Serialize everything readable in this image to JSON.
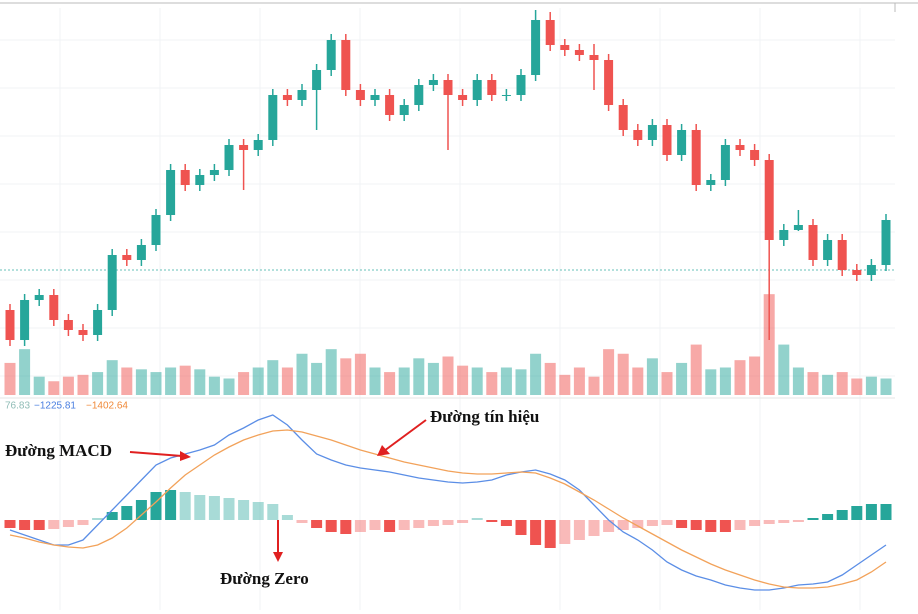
{
  "chart_data": [
    {
      "type": "candlestick",
      "ylim": [
        0,
        340
      ],
      "up_color": "#26a69a",
      "down_color": "#ef5350",
      "price_line": 80,
      "open": [
        40,
        10,
        50,
        55,
        30,
        20,
        15,
        40,
        95,
        90,
        105,
        135,
        180,
        165,
        175,
        180,
        205,
        200,
        210,
        255,
        250,
        260,
        280,
        310,
        260,
        250,
        255,
        235,
        245,
        265,
        270,
        255,
        250,
        270,
        255,
        255,
        275,
        330,
        305,
        300,
        295,
        290,
        245,
        220,
        210,
        225,
        195,
        220,
        165,
        170,
        205,
        200,
        190,
        110,
        120,
        125,
        90,
        110,
        80,
        75,
        85
      ],
      "close": [
        10,
        50,
        55,
        30,
        20,
        15,
        40,
        95,
        90,
        105,
        135,
        180,
        165,
        175,
        180,
        205,
        200,
        210,
        255,
        250,
        260,
        280,
        310,
        260,
        250,
        255,
        235,
        245,
        265,
        270,
        255,
        250,
        270,
        255,
        255,
        275,
        330,
        305,
        300,
        295,
        290,
        245,
        220,
        210,
        225,
        195,
        220,
        165,
        170,
        205,
        200,
        190,
        110,
        120,
        125,
        90,
        110,
        80,
        75,
        85,
        130
      ],
      "high": [
        46,
        56,
        61,
        61,
        36,
        26,
        46,
        101,
        101,
        111,
        141,
        186,
        186,
        181,
        186,
        211,
        211,
        216,
        261,
        261,
        266,
        286,
        316,
        316,
        266,
        261,
        261,
        251,
        271,
        276,
        276,
        261,
        276,
        276,
        261,
        281,
        340,
        338,
        311,
        306,
        306,
        296,
        251,
        226,
        231,
        231,
        226,
        226,
        176,
        211,
        211,
        206,
        196,
        126,
        140,
        131,
        116,
        116,
        86,
        91,
        136
      ],
      "low": [
        4,
        4,
        44,
        24,
        14,
        9,
        9,
        34,
        84,
        84,
        99,
        129,
        159,
        159,
        169,
        174,
        160,
        194,
        204,
        244,
        244,
        220,
        274,
        254,
        244,
        244,
        229,
        229,
        239,
        259,
        200,
        244,
        244,
        249,
        249,
        249,
        269,
        299,
        294,
        289,
        260,
        239,
        214,
        204,
        204,
        189,
        189,
        159,
        159,
        164,
        194,
        184,
        10,
        104,
        119,
        84,
        84,
        74,
        69,
        69,
        79
      ]
    },
    {
      "type": "bar",
      "ylim": [
        0,
        120
      ],
      "values": [
        35,
        50,
        20,
        15,
        20,
        22,
        25,
        38,
        30,
        28,
        25,
        30,
        32,
        28,
        20,
        18,
        25,
        30,
        38,
        30,
        45,
        35,
        50,
        40,
        45,
        30,
        25,
        30,
        40,
        35,
        42,
        32,
        30,
        25,
        30,
        28,
        45,
        35,
        22,
        30,
        20,
        50,
        45,
        30,
        40,
        25,
        35,
        55,
        28,
        30,
        38,
        42,
        110,
        55,
        30,
        25,
        22,
        25,
        18,
        20,
        18
      ]
    },
    {
      "type": "macd",
      "ylim": [
        -80,
        110
      ],
      "header": [
        {
          "text": "76.83",
          "color": "#8fbcb6"
        },
        {
          "text": "−1225.81",
          "color": "#4a7fe0"
        },
        {
          "text": "−1402.64",
          "color": "#f08a3a"
        }
      ],
      "series": [
        {
          "color": "#5b8ee6",
          "values": [
            -10,
            -15,
            -20,
            -25,
            -25,
            -20,
            -5,
            10,
            25,
            40,
            55,
            62,
            66,
            70,
            75,
            85,
            92,
            100,
            105,
            95,
            80,
            66,
            60,
            55,
            52,
            50,
            48,
            45,
            42,
            40,
            38,
            37,
            38,
            40,
            45,
            48,
            50,
            46,
            40,
            30,
            15,
            0,
            -12,
            -20,
            -30,
            -42,
            -50,
            -56,
            -60,
            -65,
            -68,
            -70,
            -70,
            -68,
            -65,
            -64,
            -62,
            -55,
            -45,
            -35,
            -25
          ]
        },
        {
          "color": "#f2a25a",
          "values": [
            -15,
            -18,
            -22,
            -25,
            -27,
            -28,
            -25,
            -18,
            -8,
            5,
            18,
            32,
            45,
            55,
            65,
            73,
            80,
            85,
            89,
            90,
            88,
            84,
            80,
            75,
            70,
            66,
            62,
            58,
            55,
            52,
            49,
            47,
            46,
            46,
            47,
            48,
            47,
            42,
            36,
            28,
            20,
            11,
            2,
            -6,
            -14,
            -22,
            -30,
            -37,
            -44,
            -50,
            -55,
            -60,
            -64,
            -67,
            -68,
            -68,
            -67,
            -64,
            -60,
            -52,
            -42
          ]
        }
      ],
      "histogram": [
        -8,
        -10,
        -10,
        -9,
        -7,
        -5,
        2,
        8,
        14,
        20,
        28,
        30,
        28,
        25,
        24,
        22,
        20,
        18,
        16,
        5,
        -3,
        -8,
        -12,
        -14,
        -12,
        -10,
        -12,
        -10,
        -8,
        -6,
        -5,
        -3,
        2,
        -2,
        -6,
        -15,
        -25,
        -28,
        -24,
        -20,
        -16,
        -12,
        -10,
        -8,
        -6,
        -5,
        -8,
        -10,
        -12,
        -12,
        -10,
        -6,
        -4,
        -3,
        -2,
        2,
        6,
        10,
        14,
        16,
        16
      ],
      "annotations": [
        "Đường tín hiệu",
        "Đường MACD",
        "Đường Zero"
      ]
    }
  ]
}
